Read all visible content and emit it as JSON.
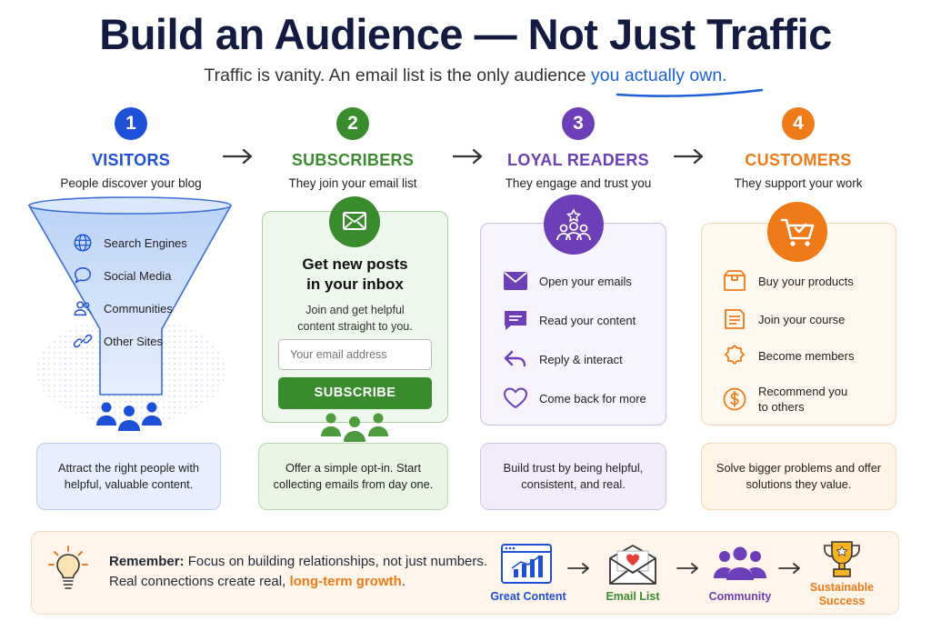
{
  "title": "Build an Audience — Not Just Traffic",
  "subtitle": {
    "lead": "Traffic is vanity. An email list is the only audience ",
    "highlight": "you actually own."
  },
  "steps": [
    {
      "number": "1",
      "name": "VISITORS",
      "desc": "People discover your blog",
      "color": "#1d4fd7"
    },
    {
      "number": "2",
      "name": "SUBSCRIBERS",
      "desc": "They join your email list",
      "color": "#3a8a2e"
    },
    {
      "number": "3",
      "name": "LOYAL READERS",
      "desc": "They engage and trust you",
      "color": "#6c3fb8"
    },
    {
      "number": "4",
      "name": "CUSTOMERS",
      "desc": "They support your work",
      "color": "#ee7a18"
    }
  ],
  "visitors": {
    "sources": [
      "Search Engines",
      "Social Media",
      "Communities",
      "Other Sites"
    ],
    "note": "Attract the right people with helpful, valuable content."
  },
  "subscribers": {
    "heading1": "Get new posts",
    "heading2": "in your inbox",
    "body1": "Join and get helpful",
    "body2": "content straight to you.",
    "placeholder": "Your email address",
    "button": "SUBSCRIBE",
    "note": "Offer a simple opt-in. Start collecting emails from day one."
  },
  "readers": {
    "items": [
      "Open your emails",
      "Read your content",
      "Reply & interact",
      "Come back for more"
    ],
    "note": "Build trust by being helpful, consistent, and real."
  },
  "customers": {
    "items": [
      "Buy your products",
      "Join your course",
      "Become members",
      "Recommend you"
    ],
    "item4b": "to others",
    "note": "Solve bigger problems and offer solutions they value."
  },
  "remember": {
    "label": "Remember:",
    "line1": " Focus on building relationships, not just numbers.",
    "line2a": "Real connections create real, ",
    "line2b": "long-term growth",
    "line2c": "."
  },
  "flow": [
    {
      "label": "Great Content",
      "color": "#1d4fd7"
    },
    {
      "label": "Email List",
      "color": "#3a8a2e"
    },
    {
      "label": "Community",
      "color": "#6c3fb8"
    },
    {
      "label": "Sustainable",
      "label2": "Success",
      "color": "#ee7a18"
    }
  ]
}
